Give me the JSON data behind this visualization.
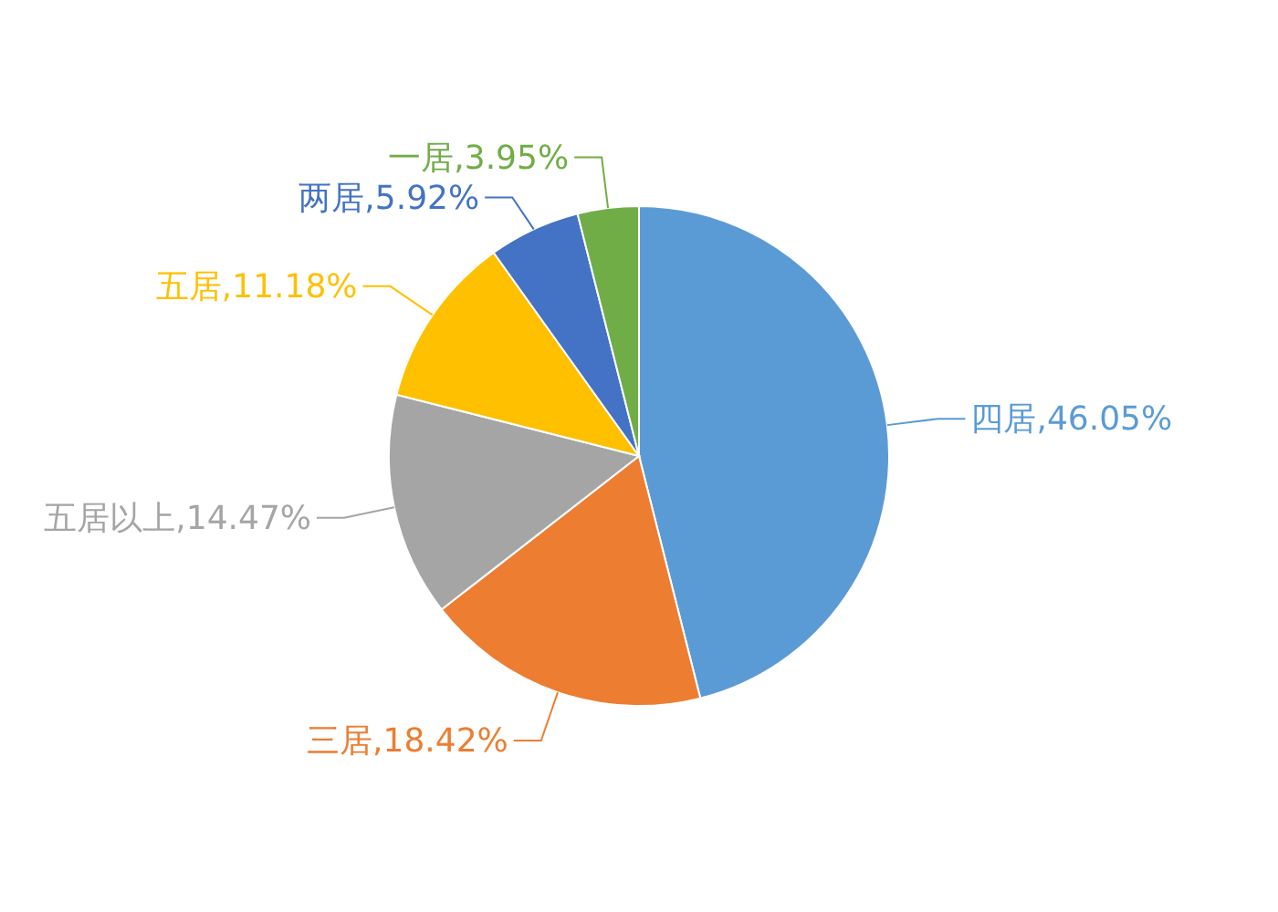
{
  "chart_data": {
    "type": "pie",
    "categories": [
      "四居",
      "三居",
      "五居以上",
      "五居",
      "两居",
      "一居"
    ],
    "values": [
      46.05,
      18.42,
      14.47,
      11.18,
      5.92,
      3.95
    ],
    "value_labels": [
      "46.05%",
      "18.42%",
      "14.47%",
      "11.18%",
      "5.92%",
      "3.95%"
    ],
    "colors": [
      "#5b9bd5",
      "#ed7d31",
      "#a5a5a5",
      "#ffc000",
      "#4472c4",
      "#70ad47"
    ]
  }
}
